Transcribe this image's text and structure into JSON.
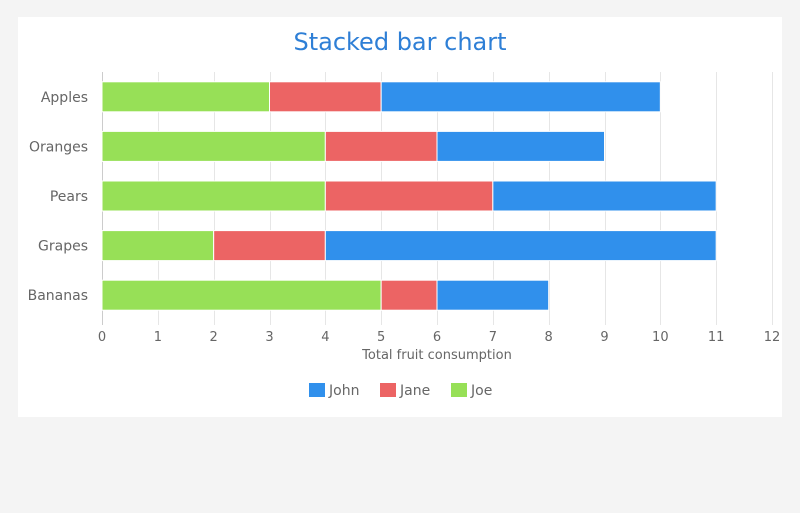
{
  "chart_data": {
    "type": "bar",
    "orientation": "horizontal",
    "stacked": true,
    "title": "Stacked bar chart",
    "xlabel": "Total fruit consumption",
    "ylabel": "",
    "categories": [
      "Apples",
      "Oranges",
      "Pears",
      "Grapes",
      "Bananas"
    ],
    "series": [
      {
        "name": "Joe",
        "color": "#97e057",
        "values": [
          3,
          4,
          4,
          2,
          5
        ]
      },
      {
        "name": "Jane",
        "color": "#ec6464",
        "values": [
          2,
          2,
          3,
          2,
          1
        ]
      },
      {
        "name": "John",
        "color": "#3090ec",
        "values": [
          5,
          3,
          4,
          7,
          2
        ]
      }
    ],
    "legend_order": [
      "John",
      "Jane",
      "Joe"
    ],
    "xlim": [
      0,
      12
    ],
    "xticks": [
      0,
      1,
      2,
      3,
      4,
      5,
      6,
      7,
      8,
      9,
      10,
      11,
      12
    ],
    "grid": true,
    "legend_position": "bottom"
  }
}
